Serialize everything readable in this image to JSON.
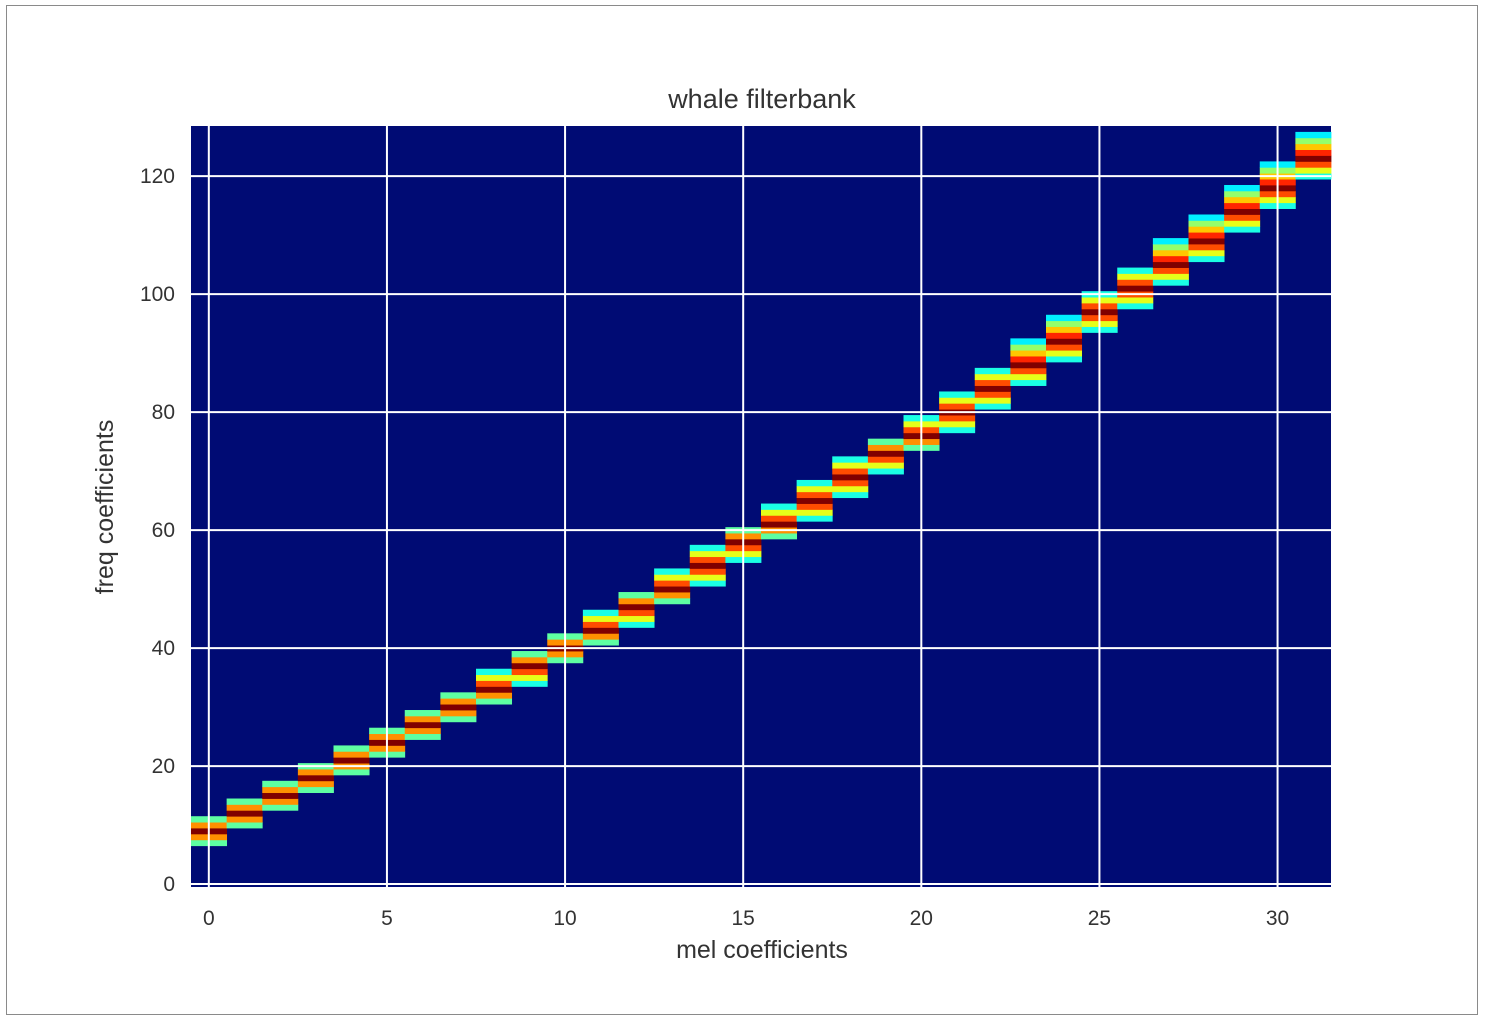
{
  "chart_data": {
    "type": "heatmap",
    "title": "whale filterbank",
    "xlabel": "mel coefficients",
    "ylabel": "freq coefficients",
    "xlim": [
      -0.5,
      31.5
    ],
    "ylim": [
      -0.5,
      128.5
    ],
    "xticks": [
      0,
      5,
      10,
      15,
      20,
      25,
      30
    ],
    "yticks": [
      0,
      20,
      40,
      60,
      80,
      100,
      120
    ],
    "grid": true,
    "colormap": "jet",
    "background_color": "#000b74",
    "grid_color": "#ffffff",
    "filters": [
      {
        "mel": 0,
        "start": 7,
        "peak": 9,
        "end": 11
      },
      {
        "mel": 1,
        "start": 10,
        "peak": 12,
        "end": 14
      },
      {
        "mel": 2,
        "start": 13,
        "peak": 15,
        "end": 17
      },
      {
        "mel": 3,
        "start": 16,
        "peak": 18,
        "end": 20
      },
      {
        "mel": 4,
        "start": 19,
        "peak": 21,
        "end": 23
      },
      {
        "mel": 5,
        "start": 22,
        "peak": 24,
        "end": 26
      },
      {
        "mel": 6,
        "start": 25,
        "peak": 27,
        "end": 29
      },
      {
        "mel": 7,
        "start": 28,
        "peak": 30,
        "end": 32
      },
      {
        "mel": 8,
        "start": 31,
        "peak": 33,
        "end": 36
      },
      {
        "mel": 9,
        "start": 34,
        "peak": 37,
        "end": 39
      },
      {
        "mel": 10,
        "start": 38,
        "peak": 40,
        "end": 42
      },
      {
        "mel": 11,
        "start": 41,
        "peak": 43,
        "end": 46
      },
      {
        "mel": 12,
        "start": 44,
        "peak": 47,
        "end": 49
      },
      {
        "mel": 13,
        "start": 48,
        "peak": 50,
        "end": 53
      },
      {
        "mel": 14,
        "start": 51,
        "peak": 54,
        "end": 57
      },
      {
        "mel": 15,
        "start": 55,
        "peak": 58,
        "end": 60
      },
      {
        "mel": 16,
        "start": 59,
        "peak": 61,
        "end": 64
      },
      {
        "mel": 17,
        "start": 62,
        "peak": 65,
        "end": 68
      },
      {
        "mel": 18,
        "start": 66,
        "peak": 69,
        "end": 72
      },
      {
        "mel": 19,
        "start": 70,
        "peak": 73,
        "end": 75
      },
      {
        "mel": 20,
        "start": 74,
        "peak": 76,
        "end": 79
      },
      {
        "mel": 21,
        "start": 77,
        "peak": 80,
        "end": 83
      },
      {
        "mel": 22,
        "start": 81,
        "peak": 84,
        "end": 87
      },
      {
        "mel": 23,
        "start": 85,
        "peak": 88,
        "end": 92
      },
      {
        "mel": 24,
        "start": 89,
        "peak": 92,
        "end": 96
      },
      {
        "mel": 25,
        "start": 94,
        "peak": 97,
        "end": 100
      },
      {
        "mel": 26,
        "start": 98,
        "peak": 101,
        "end": 104
      },
      {
        "mel": 27,
        "start": 102,
        "peak": 105,
        "end": 109
      },
      {
        "mel": 28,
        "start": 106,
        "peak": 109,
        "end": 113
      },
      {
        "mel": 29,
        "start": 111,
        "peak": 114,
        "end": 118
      },
      {
        "mel": 30,
        "start": 115,
        "peak": 118,
        "end": 122
      },
      {
        "mel": 31,
        "start": 120,
        "peak": 123,
        "end": 127
      }
    ]
  }
}
